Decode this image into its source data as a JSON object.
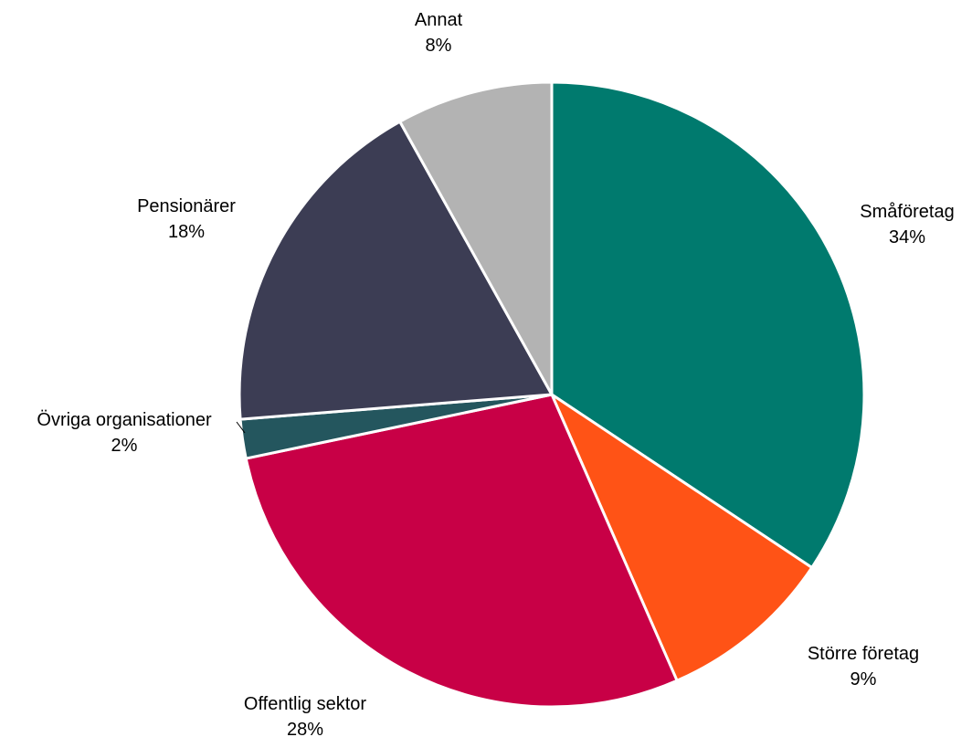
{
  "chart_data": {
    "type": "pie",
    "title": "",
    "start_angle_deg": 0,
    "direction": "clockwise",
    "legend": "none",
    "slices": [
      {
        "label": "Småföretag",
        "value": 34,
        "value_label": "34%",
        "color": "#007A6E"
      },
      {
        "label": "Större företag",
        "value": 9,
        "value_label": "9%",
        "color": "#FF5316"
      },
      {
        "label": "Offentlig sektor",
        "value": 28,
        "value_label": "28%",
        "color": "#C80046"
      },
      {
        "label": "Övriga organisationer",
        "value": 2,
        "value_label": "2%",
        "color": "#24565E"
      },
      {
        "label": "Pensionärer",
        "value": 18,
        "value_label": "18%",
        "color": "#3C3D54"
      },
      {
        "label": "Annat",
        "value": 8,
        "value_label": "8%",
        "color": "#B3B3B3"
      }
    ]
  }
}
